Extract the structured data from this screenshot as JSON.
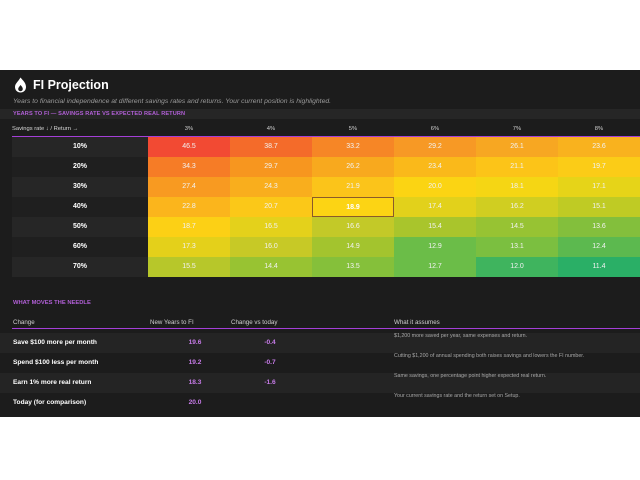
{
  "header": {
    "title": "FI Projection",
    "subtitle": "Years to financial independence at different savings rates and returns. Your current position is highlighted."
  },
  "heatmap": {
    "section_title": "YEARS TO FI — SAVINGS RATE VS EXPECTED REAL RETURN",
    "corner_label": "Savings rate ↓  /  Return →",
    "returns": [
      "3%",
      "4%",
      "5%",
      "6%",
      "7%",
      "8%"
    ],
    "rates": [
      "10%",
      "20%",
      "30%",
      "40%",
      "50%",
      "60%",
      "70%"
    ],
    "values": [
      [
        "46.5",
        "38.7",
        "33.2",
        "29.2",
        "26.1",
        "23.6"
      ],
      [
        "34.3",
        "29.7",
        "26.2",
        "23.4",
        "21.1",
        "19.7"
      ],
      [
        "27.4",
        "24.3",
        "21.9",
        "20.0",
        "18.1",
        "17.1"
      ],
      [
        "22.8",
        "20.7",
        "18.9",
        "17.4",
        "16.2",
        "15.1"
      ],
      [
        "18.7",
        "16.5",
        "16.6",
        "15.4",
        "14.5",
        "13.6"
      ],
      [
        "17.3",
        "16.0",
        "14.9",
        "12.9",
        "13.1",
        "12.4"
      ],
      [
        "15.5",
        "14.4",
        "13.5",
        "12.7",
        "12.0",
        "11.4"
      ]
    ],
    "colors": [
      [
        "#f24a33",
        "#f46b2a",
        "#f68626",
        "#f79925",
        "#f7a722",
        "#f9b21e"
      ],
      [
        "#f67c26",
        "#f7961f",
        "#f8a91e",
        "#fab91a",
        "#fcc418",
        "#fbcc17"
      ],
      [
        "#f89a21",
        "#f9ae1d",
        "#fbc41a",
        "#fbd413",
        "#f5d614",
        "#e6d418"
      ],
      [
        "#fbb51c",
        "#fbc818",
        "#fcd414",
        "#e2d11b",
        "#d0ce21",
        "#bfcb24"
      ],
      [
        "#fcd015",
        "#e4d11b",
        "#c3c928",
        "#a9c52c",
        "#97c333",
        "#83bf3c"
      ],
      [
        "#e4d01a",
        "#c7c926",
        "#a3c42e",
        "#6bbd48",
        "#7bbf40",
        "#5cb94f"
      ],
      [
        "#b7c72a",
        "#98c332",
        "#85c03a",
        "#6bbd48",
        "#3fb45e",
        "#2aaf66"
      ]
    ],
    "highlight": {
      "row": 3,
      "col": 2
    }
  },
  "needle": {
    "section_title": "WHAT MOVES THE NEEDLE",
    "columns": [
      "Change",
      "New Years to FI",
      "Change vs today",
      "What it assumes"
    ],
    "rows": [
      {
        "change": "Save $100 more per month",
        "years": "19.6",
        "delta": "-0.4",
        "assumes": "$1,200 more saved per year, same expenses and return."
      },
      {
        "change": "Spend $100 less per month",
        "years": "19.2",
        "delta": "-0.7",
        "assumes": "Cutting $1,200 of annual spending both raises savings and lowers the FI number."
      },
      {
        "change": "Earn 1% more real return",
        "years": "18.3",
        "delta": "-1.6",
        "assumes": "Same savings, one percentage point higher expected real return."
      },
      {
        "change": "Today (for comparison)",
        "years": "20.0",
        "delta": "",
        "assumes": "Your current savings rate and the return set on Setup."
      }
    ]
  },
  "colors": {
    "panel": "#1c1c1c",
    "accent": "#a43fd8",
    "value_text": "#c77be8"
  }
}
